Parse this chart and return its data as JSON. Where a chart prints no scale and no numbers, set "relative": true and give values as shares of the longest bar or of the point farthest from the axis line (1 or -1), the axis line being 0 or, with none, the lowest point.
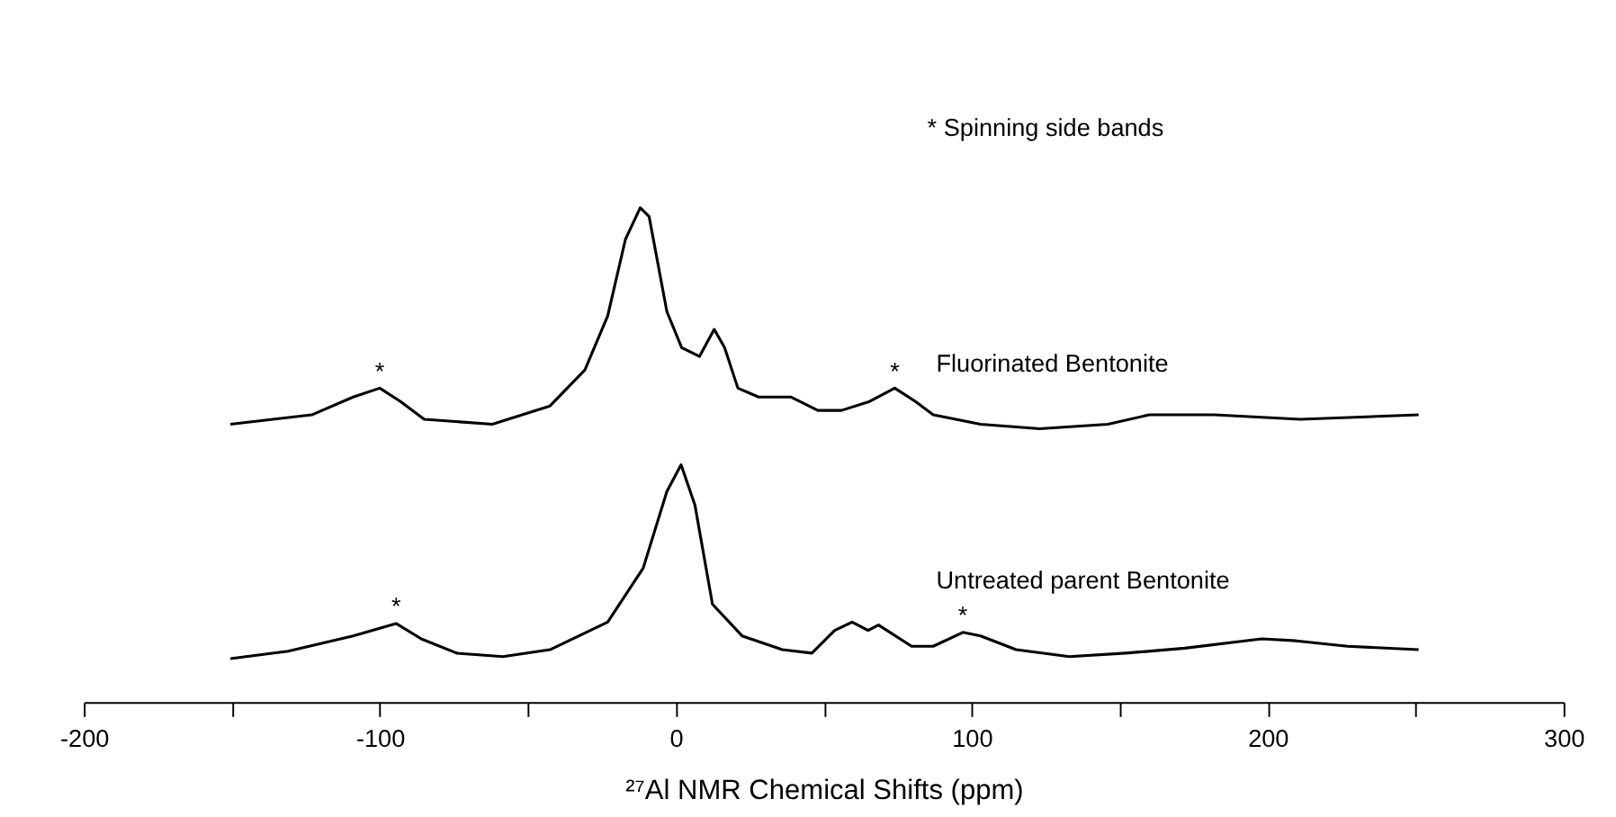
{
  "chart_data": {
    "type": "line",
    "relative": true,
    "xlabel": "²⁷Al NMR Chemical Shifts (ppm)",
    "xlim": [
      -200,
      300
    ],
    "xticks": [
      -200,
      {
        "value": -150,
        "label": null
      },
      -100,
      {
        "value": -50,
        "label": null
      },
      0,
      {
        "value": 50,
        "label": null
      },
      100,
      {
        "value": 150,
        "label": null
      },
      200,
      {
        "value": 250,
        "label": null
      },
      300
    ],
    "marker": "none",
    "line_style": "solid",
    "series": [
      {
        "name": "Fluorinated Bentonite",
        "color": "#000000",
        "x": [
          -150.5,
          -123,
          -109,
          -100,
          -93,
          -85,
          -62,
          -42.5,
          -30.7,
          -23,
          -17,
          -12,
          -9,
          -3,
          2,
          8,
          13,
          16.5,
          21,
          28,
          39,
          48,
          56,
          65.5,
          74,
          81,
          87,
          103,
          123,
          146,
          160,
          182,
          211,
          251
        ],
        "values": [
          0.562,
          0.581,
          0.617,
          0.635,
          0.608,
          0.572,
          0.562,
          0.599,
          0.672,
          0.781,
          0.936,
          1.0,
          0.982,
          0.79,
          0.717,
          0.699,
          0.754,
          0.717,
          0.635,
          0.617,
          0.617,
          0.59,
          0.59,
          0.608,
          0.635,
          0.608,
          0.581,
          0.562,
          0.553,
          0.562,
          0.581,
          0.581,
          0.572,
          0.581
        ]
      },
      {
        "name": "Untreated parent Bentonite",
        "color": "#000000",
        "x": [
          -150.5,
          -131,
          -109,
          -94.5,
          -86,
          -74,
          -58.4,
          -42.5,
          -23,
          -11,
          -3,
          1.8,
          6.5,
          12.4,
          22.4,
          36,
          46,
          53.7,
          59.6,
          65,
          68.5,
          79.7,
          87,
          97,
          103,
          115,
          133,
          152,
          172,
          198,
          209.6,
          227,
          251
        ],
        "values": [
          0.088,
          0.103,
          0.134,
          0.159,
          0.128,
          0.099,
          0.092,
          0.106,
          0.162,
          0.271,
          0.426,
          0.48,
          0.398,
          0.198,
          0.134,
          0.106,
          0.099,
          0.145,
          0.162,
          0.145,
          0.156,
          0.113,
          0.113,
          0.141,
          0.134,
          0.106,
          0.092,
          0.099,
          0.109,
          0.128,
          0.124,
          0.113,
          0.106
        ]
      }
    ],
    "annotations": [
      "* Spinning side bands",
      {
        "text": "*",
        "x": -100,
        "y": 0.635
      },
      {
        "text": "*",
        "x": 74,
        "y": 0.635
      },
      {
        "text": "*",
        "x": -94.5,
        "y": 0.159
      },
      {
        "text": "*",
        "x": 97,
        "y": 0.141
      }
    ]
  }
}
